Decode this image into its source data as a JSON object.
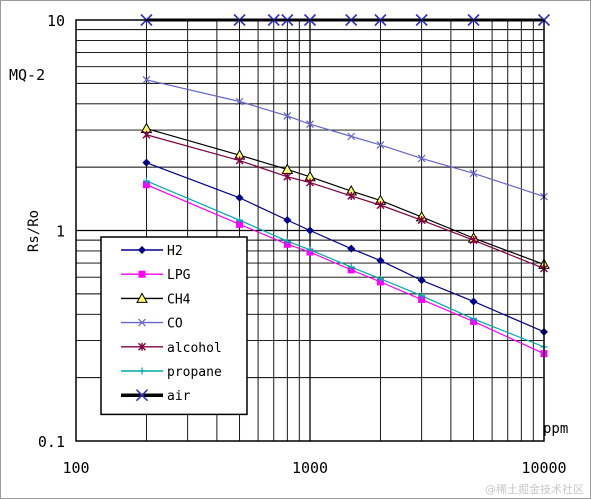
{
  "chart_data": {
    "type": "line",
    "title": "MQ-2",
    "ylabel": "Rs/Ro",
    "xlabel": "ppm",
    "x_scale": "log",
    "y_scale": "log",
    "xlim": [
      100,
      10000
    ],
    "ylim": [
      0.1,
      10
    ],
    "x_ticks": [
      "100",
      "1000",
      "10000"
    ],
    "y_ticks": [
      "10",
      "1",
      "0.1"
    ],
    "grid": true,
    "legend_position": "bottom-left",
    "series": [
      {
        "name": "H2",
        "color": "#00008b",
        "marker": "diamond",
        "x": [
          200,
          500,
          800,
          1000,
          1500,
          2000,
          3000,
          5000,
          10000
        ],
        "y": [
          2.1,
          1.43,
          1.12,
          1.0,
          0.82,
          0.72,
          0.58,
          0.46,
          0.33
        ]
      },
      {
        "name": "LPG",
        "color": "#ff00ff",
        "marker": "square",
        "x": [
          200,
          500,
          800,
          1000,
          1500,
          2000,
          3000,
          5000,
          10000
        ],
        "y": [
          1.65,
          1.07,
          0.86,
          0.79,
          0.65,
          0.57,
          0.47,
          0.37,
          0.26
        ]
      },
      {
        "name": "CH4",
        "color": "#000000",
        "marker": "triangle",
        "marker_fill": "#ffff66",
        "x": [
          200,
          500,
          800,
          1000,
          1500,
          2000,
          3000,
          5000,
          10000
        ],
        "y": [
          3.05,
          2.28,
          1.95,
          1.8,
          1.54,
          1.39,
          1.16,
          0.92,
          0.69
        ]
      },
      {
        "name": "CO",
        "color": "#6666cc",
        "marker": "x",
        "x": [
          200,
          500,
          800,
          1000,
          1500,
          2000,
          3000,
          5000,
          10000
        ],
        "y": [
          5.2,
          4.1,
          3.5,
          3.2,
          2.8,
          2.55,
          2.2,
          1.87,
          1.45
        ]
      },
      {
        "name": "alcohol",
        "color": "#800040",
        "marker": "star",
        "x": [
          200,
          500,
          800,
          1000,
          1500,
          2000,
          3000,
          5000,
          10000
        ],
        "y": [
          2.85,
          2.15,
          1.8,
          1.69,
          1.46,
          1.32,
          1.12,
          0.9,
          0.66
        ]
      },
      {
        "name": "propane",
        "color": "#00aaaa",
        "marker": "plus",
        "x": [
          200,
          500,
          800,
          1000,
          1500,
          2000,
          3000,
          5000,
          10000
        ],
        "y": [
          1.72,
          1.12,
          0.89,
          0.81,
          0.67,
          0.59,
          0.49,
          0.38,
          0.28
        ]
      },
      {
        "name": "air",
        "color": "#000000",
        "marker": "x",
        "marker_color": "#3333cc",
        "line_width": 3,
        "x": [
          200,
          500,
          700,
          800,
          1000,
          1500,
          2000,
          3000,
          5000,
          10000
        ],
        "y": [
          10,
          10,
          10,
          10,
          10,
          10,
          10,
          10,
          10,
          10
        ]
      }
    ]
  },
  "watermark": "@稀土掘金技术社区"
}
